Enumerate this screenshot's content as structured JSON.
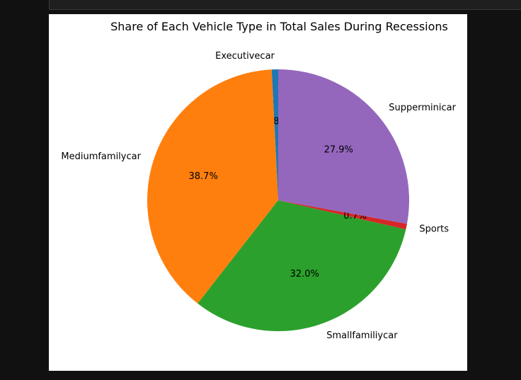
{
  "chart_data": {
    "type": "pie",
    "title": "Share of Each Vehicle Type in Total Sales During Recessions",
    "start_angle_deg": 90,
    "direction": "counterclockwise",
    "slices": [
      {
        "label": "Executivecar",
        "value": 0.8,
        "pct_label": "0.8%",
        "color": "#1f77b4"
      },
      {
        "label": "Mediumfamilycar",
        "value": 38.7,
        "pct_label": "38.7%",
        "color": "#ff7f0e"
      },
      {
        "label": "Smallfamiliycar",
        "value": 32.0,
        "pct_label": "32.0%",
        "color": "#2ca02c"
      },
      {
        "label": "Sports",
        "value": 0.7,
        "pct_label": "0.7%",
        "color": "#d62728"
      },
      {
        "label": "Supperminicar",
        "value": 27.9,
        "pct_label": "27.9%",
        "color": "#9467bd"
      }
    ]
  }
}
